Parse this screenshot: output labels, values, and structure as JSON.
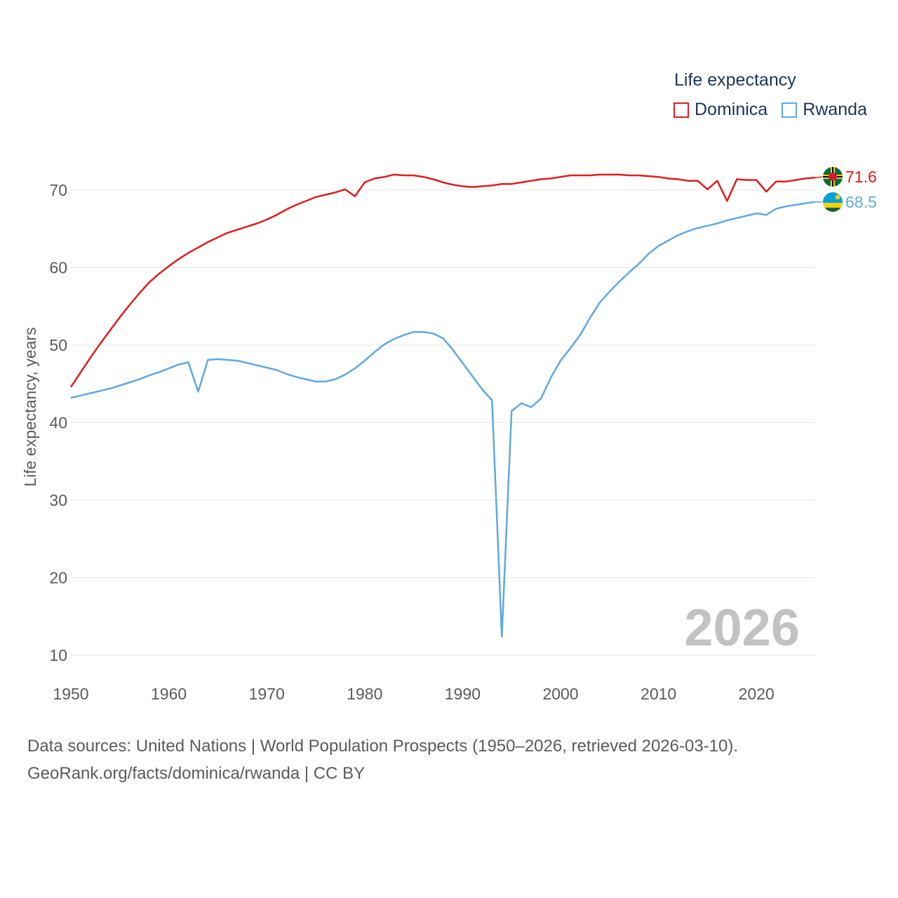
{
  "colors": {
    "dominica": "#e01c1c",
    "rwanda": "#5fa8e3",
    "grid": "#e6e6e6",
    "text": "#5a5a5a"
  },
  "legend": {
    "title": "Life expectancy",
    "items": [
      {
        "label": "Dominica",
        "color": "#e01c1c"
      },
      {
        "label": "Rwanda",
        "color": "#5fa8e3"
      }
    ]
  },
  "watermark_year": "2026",
  "footer": {
    "line1": "Data sources: United Nations | World Population Prospects (1950–2026, retrieved 2026-03-10).",
    "line2": "GeoRank.org/facts/dominica/rwanda | CC BY"
  },
  "chart_data": {
    "type": "line",
    "title": "Life expectancy",
    "xlabel": "",
    "ylabel": "Life expectancy, years",
    "xlim": [
      1950,
      2026
    ],
    "ylim": [
      10,
      74
    ],
    "x_ticks": [
      1950,
      1960,
      1970,
      1980,
      1990,
      2000,
      2010,
      2020
    ],
    "x_tick_labels": [
      "1950",
      "1960",
      "1970",
      "1980",
      "1990",
      "2000",
      "2010",
      "2020"
    ],
    "y_ticks": [
      10,
      20,
      30,
      40,
      50,
      60,
      70
    ],
    "y_tick_labels": [
      "10",
      "20",
      "30",
      "40",
      "50",
      "60",
      "70"
    ],
    "x": [
      1950,
      1951,
      1952,
      1953,
      1954,
      1955,
      1956,
      1957,
      1958,
      1959,
      1960,
      1961,
      1962,
      1963,
      1964,
      1965,
      1966,
      1967,
      1968,
      1969,
      1970,
      1971,
      1972,
      1973,
      1974,
      1975,
      1976,
      1977,
      1978,
      1979,
      1980,
      1981,
      1982,
      1983,
      1984,
      1985,
      1986,
      1987,
      1988,
      1989,
      1990,
      1991,
      1992,
      1993,
      1994,
      1995,
      1996,
      1997,
      1998,
      1999,
      2000,
      2001,
      2002,
      2003,
      2004,
      2005,
      2006,
      2007,
      2008,
      2009,
      2010,
      2011,
      2012,
      2013,
      2014,
      2015,
      2016,
      2017,
      2018,
      2019,
      2020,
      2021,
      2022,
      2023,
      2024,
      2025,
      2026
    ],
    "series": [
      {
        "name": "Dominica",
        "end_label": "71.6",
        "values": [
          44.6,
          46.5,
          48.4,
          50.2,
          51.9,
          53.6,
          55.2,
          56.7,
          58.1,
          59.2,
          60.2,
          61.1,
          61.9,
          62.6,
          63.3,
          63.9,
          64.5,
          64.9,
          65.3,
          65.7,
          66.2,
          66.8,
          67.5,
          68.1,
          68.6,
          69.1,
          69.4,
          69.7,
          70.1,
          69.2,
          71.0,
          71.5,
          71.7,
          72.0,
          71.9,
          71.9,
          71.7,
          71.4,
          71.0,
          70.7,
          70.5,
          70.4,
          70.5,
          70.6,
          70.8,
          70.8,
          71.0,
          71.2,
          71.4,
          71.5,
          71.7,
          71.9,
          71.9,
          71.9,
          72.0,
          72.0,
          72.0,
          71.9,
          71.9,
          71.8,
          71.7,
          71.5,
          71.4,
          71.2,
          71.2,
          70.1,
          71.2,
          68.6,
          71.4,
          71.3,
          71.3,
          69.8,
          71.1,
          71.1,
          71.3,
          71.5,
          71.6
        ]
      },
      {
        "name": "Rwanda",
        "end_label": "68.5",
        "values": [
          43.2,
          43.5,
          43.8,
          44.1,
          44.4,
          44.8,
          45.2,
          45.6,
          46.1,
          46.5,
          47.0,
          47.5,
          47.8,
          44.0,
          48.1,
          48.2,
          48.1,
          48.0,
          47.7,
          47.4,
          47.1,
          46.8,
          46.3,
          45.9,
          45.6,
          45.3,
          45.3,
          45.6,
          46.2,
          47.0,
          48.0,
          49.1,
          50.1,
          50.8,
          51.3,
          51.7,
          51.7,
          51.5,
          50.9,
          49.4,
          47.7,
          46.0,
          44.3,
          42.9,
          12.4,
          41.5,
          42.5,
          42.0,
          43.1,
          45.8,
          48.0,
          49.6,
          51.3,
          53.5,
          55.5,
          56.9,
          58.2,
          59.4,
          60.5,
          61.8,
          62.8,
          63.5,
          64.2,
          64.7,
          65.1,
          65.4,
          65.7,
          66.1,
          66.4,
          66.7,
          67.0,
          66.8,
          67.6,
          67.9,
          68.1,
          68.3,
          68.5
        ]
      }
    ]
  }
}
